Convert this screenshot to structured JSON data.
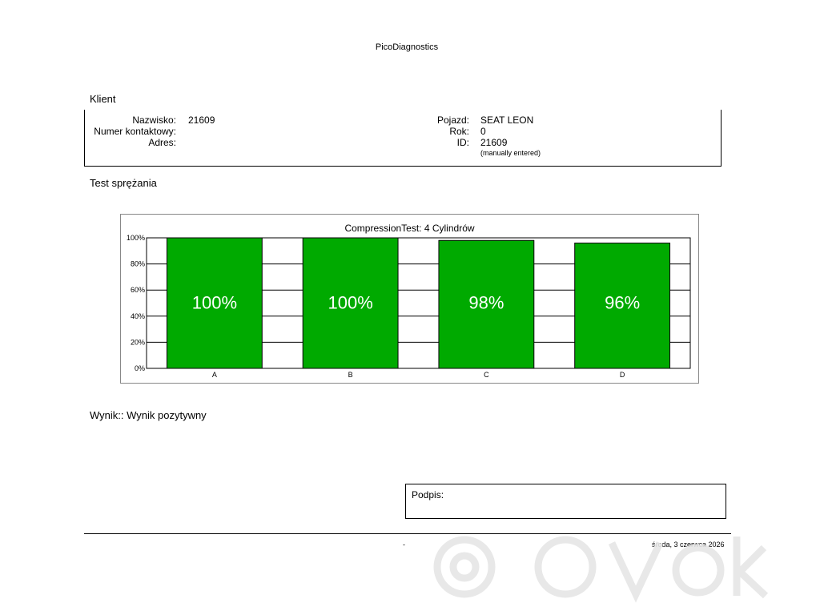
{
  "header": {
    "title": "PicoDiagnostics"
  },
  "client": {
    "heading": "Klient",
    "surname_label": "Nazwisko:",
    "surname_value": "21609",
    "contact_label": "Numer kontaktowy:",
    "address_label": "Adres:",
    "vehicle_label": "Pojazd:",
    "vehicle_value": "SEAT LEON",
    "year_label": "Rok:",
    "year_value": "0",
    "id_label": "ID:",
    "id_value": "21609",
    "id_note": "(manually entered)"
  },
  "test": {
    "heading": "Test sprężania"
  },
  "chart_data": {
    "type": "bar",
    "title": "CompressionTest: 4 Cylindrów",
    "categories": [
      "A",
      "B",
      "C",
      "D"
    ],
    "values": [
      100,
      100,
      98,
      96
    ],
    "data_labels": [
      "100%",
      "100%",
      "98%",
      "96%"
    ],
    "y_ticks": [
      "0%",
      "20%",
      "40%",
      "60%",
      "80%",
      "100%"
    ],
    "ylim": [
      0,
      100
    ],
    "grid": true,
    "bar_color": "#00aa00"
  },
  "result": {
    "text": "Wynik:: Wynik pozytywny"
  },
  "signature": {
    "label": "Podpis:"
  },
  "footer": {
    "dash": "-",
    "date": "środa, 3 czerwca 2026"
  }
}
